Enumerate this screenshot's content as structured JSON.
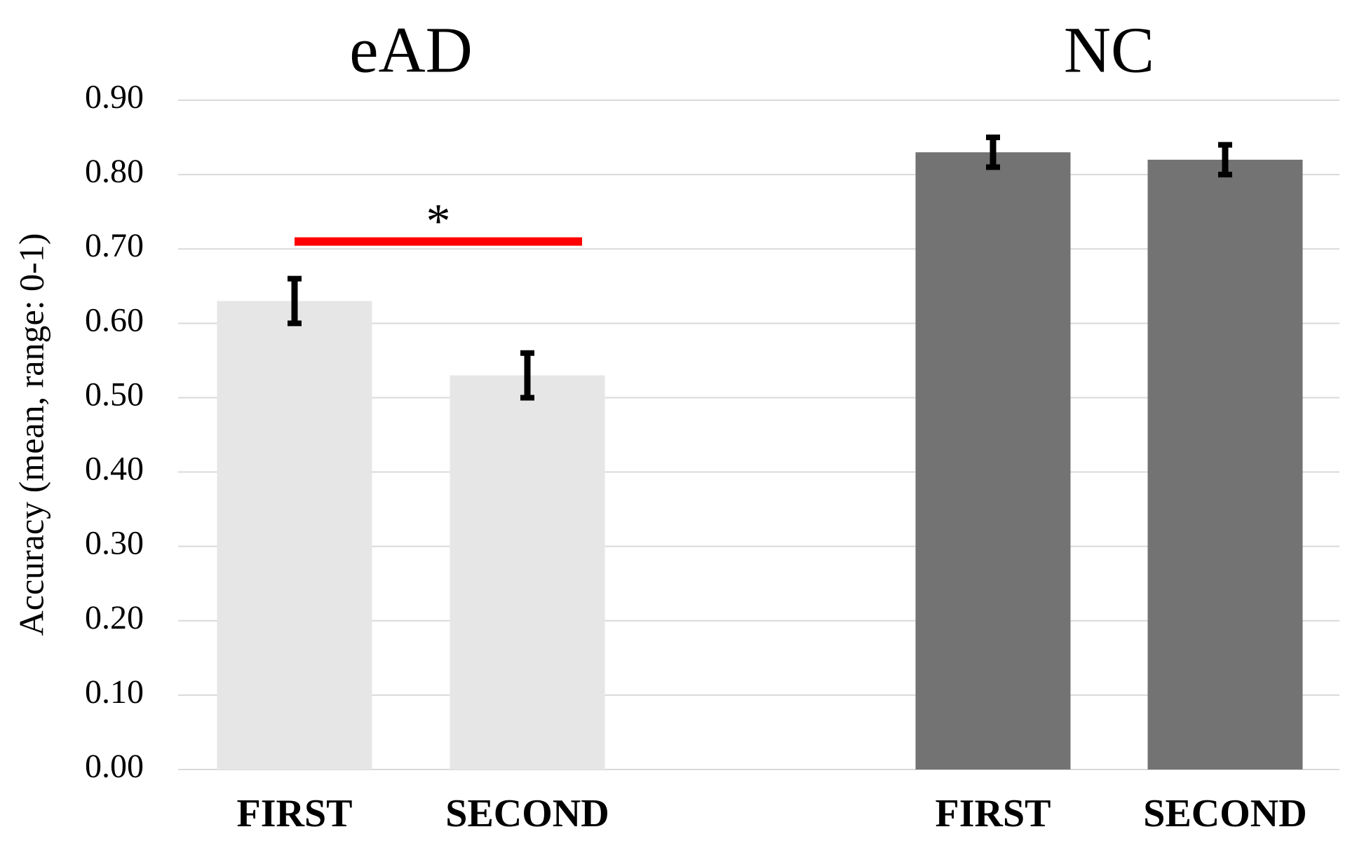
{
  "chart_data": {
    "type": "bar",
    "ylabel": "Accuracy (mean, range: 0-1)",
    "ylim": [
      0,
      0.9
    ],
    "yticks": [
      {
        "value": 0,
        "label": "0.00"
      },
      {
        "value": 0.1,
        "label": "0.10"
      },
      {
        "value": 0.2,
        "label": "0.20"
      },
      {
        "value": 0.3,
        "label": "0.30"
      },
      {
        "value": 0.4,
        "label": "0.40"
      },
      {
        "value": 0.5,
        "label": "0.50"
      },
      {
        "value": 0.6,
        "label": "0.60"
      },
      {
        "value": 0.7,
        "label": "0.70"
      },
      {
        "value": 0.8,
        "label": "0.80"
      },
      {
        "value": 0.9,
        "label": "0.90"
      }
    ],
    "grid": true,
    "groups": [
      {
        "title": "eAD",
        "categories": [
          "FIRST",
          "SECOND"
        ],
        "values": [
          0.63,
          0.53
        ],
        "errors": [
          0.03,
          0.03
        ],
        "color": "#e6e6e6",
        "significance": {
          "label": "*",
          "value": 0.71,
          "color": "#ff0000"
        }
      },
      {
        "title": "NC",
        "categories": [
          "FIRST",
          "SECOND"
        ],
        "values": [
          0.83,
          0.82
        ],
        "errors": [
          0.02,
          0.02
        ],
        "color": "#737373"
      }
    ]
  }
}
